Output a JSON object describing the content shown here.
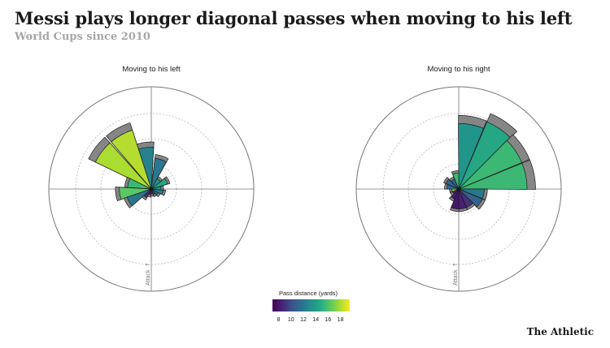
{
  "header": {
    "title": "Messi plays longer diagonal passes when moving to his left",
    "subtitle": "World Cups since 2010"
  },
  "brand": "The Athletic",
  "colors": {
    "background": "#ffffff",
    "ring": "#777777",
    "attempted_bar": "#8a8a8a",
    "text": "#1a1a1a",
    "muted": "#a6a6a6"
  },
  "chart_data": [
    {
      "type": "polar-bar",
      "title": "Moving to his left",
      "direction_label": "Attack",
      "direction_arrow": "↑",
      "bars": [
        {
          "direction_deg": 352,
          "outer_fraction": 0.46,
          "distance_yards": 12.5
        },
        {
          "direction_deg": 331,
          "outer_fraction": 0.68,
          "distance_yards": 18.2
        },
        {
          "direction_deg": 307,
          "outer_fraction": 0.68,
          "distance_yards": 18.0
        },
        {
          "direction_deg": 285,
          "outer_fraction": 0.26,
          "distance_yards": 15.5
        },
        {
          "direction_deg": 262,
          "outer_fraction": 0.35,
          "distance_yards": 16.3
        },
        {
          "direction_deg": 240,
          "outer_fraction": 0.28,
          "distance_yards": 12.0
        },
        {
          "direction_deg": 218,
          "outer_fraction": 0.12,
          "distance_yards": 9.0
        },
        {
          "direction_deg": 196,
          "outer_fraction": 0.08,
          "distance_yards": 8.5
        },
        {
          "direction_deg": 172,
          "outer_fraction": 0.07,
          "distance_yards": 8.8
        },
        {
          "direction_deg": 150,
          "outer_fraction": 0.08,
          "distance_yards": 9.5
        },
        {
          "direction_deg": 128,
          "outer_fraction": 0.1,
          "distance_yards": 12.0
        },
        {
          "direction_deg": 106,
          "outer_fraction": 0.14,
          "distance_yards": 12.5
        },
        {
          "direction_deg": 84,
          "outer_fraction": 0.12,
          "distance_yards": 13.0
        },
        {
          "direction_deg": 62,
          "outer_fraction": 0.19,
          "distance_yards": 14.5
        },
        {
          "direction_deg": 40,
          "outer_fraction": 0.14,
          "distance_yards": 13.5
        },
        {
          "direction_deg": 18,
          "outer_fraction": 0.34,
          "distance_yards": 12.0
        }
      ]
    },
    {
      "type": "polar-bar",
      "title": "Moving to his right",
      "direction_label": "Attack",
      "direction_arrow": "↑",
      "bars": [
        {
          "direction_deg": 11,
          "outer_fraction": 0.72,
          "distance_yards": 13.5
        },
        {
          "direction_deg": 34,
          "outer_fraction": 0.8,
          "distance_yards": 14.5
        },
        {
          "direction_deg": 56,
          "outer_fraction": 0.75,
          "distance_yards": 15.5
        },
        {
          "direction_deg": 79,
          "outer_fraction": 0.75,
          "distance_yards": 15.5
        },
        {
          "direction_deg": 101,
          "outer_fraction": 0.28,
          "distance_yards": 12.0
        },
        {
          "direction_deg": 124,
          "outer_fraction": 0.28,
          "distance_yards": 11.0
        },
        {
          "direction_deg": 146,
          "outer_fraction": 0.22,
          "distance_yards": 9.0
        },
        {
          "direction_deg": 169,
          "outer_fraction": 0.22,
          "distance_yards": 8.5
        },
        {
          "direction_deg": 191,
          "outer_fraction": 0.22,
          "distance_yards": 8.0
        },
        {
          "direction_deg": 214,
          "outer_fraction": 0.13,
          "distance_yards": 8.5
        },
        {
          "direction_deg": 236,
          "outer_fraction": 0.09,
          "distance_yards": 9.0
        },
        {
          "direction_deg": 259,
          "outer_fraction": 0.09,
          "distance_yards": 18.5
        },
        {
          "direction_deg": 281,
          "outer_fraction": 0.14,
          "distance_yards": 11.5
        },
        {
          "direction_deg": 304,
          "outer_fraction": 0.16,
          "distance_yards": 11.0
        },
        {
          "direction_deg": 326,
          "outer_fraction": 0.13,
          "distance_yards": 11.0
        },
        {
          "direction_deg": 349,
          "outer_fraction": 0.18,
          "distance_yards": 15.5
        }
      ]
    }
  ],
  "legend": {
    "title": "Pass distance (yards)",
    "colormap": "viridis",
    "min": 7,
    "max": 19.5,
    "ticks": [
      "8",
      "10",
      "12",
      "14",
      "16",
      "18"
    ]
  }
}
